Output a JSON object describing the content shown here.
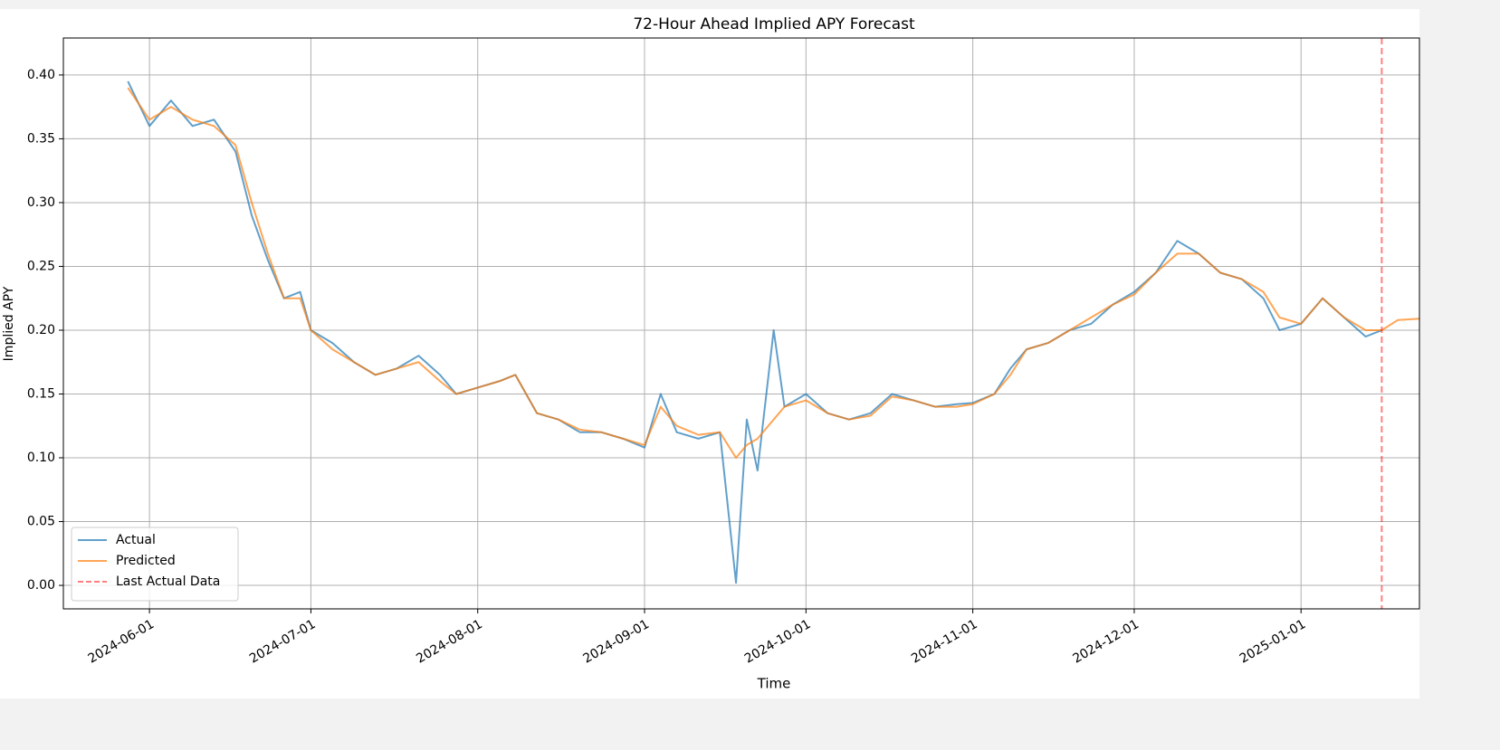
{
  "chart_data": {
    "type": "line",
    "title": "72-Hour Ahead Implied APY Forecast",
    "xlabel": "Time",
    "ylabel": "Implied APY",
    "x": [
      "2024-05-28",
      "2024-06-01",
      "2024-06-05",
      "2024-06-09",
      "2024-06-13",
      "2024-06-17",
      "2024-06-20",
      "2024-06-23",
      "2024-06-26",
      "2024-06-29",
      "2024-07-01",
      "2024-07-05",
      "2024-07-09",
      "2024-07-13",
      "2024-07-17",
      "2024-07-21",
      "2024-07-25",
      "2024-07-28",
      "2024-08-01",
      "2024-08-05",
      "2024-08-08",
      "2024-08-12",
      "2024-08-16",
      "2024-08-20",
      "2024-08-24",
      "2024-08-28",
      "2024-09-01",
      "2024-09-04",
      "2024-09-07",
      "2024-09-11",
      "2024-09-15",
      "2024-09-18",
      "2024-09-20",
      "2024-09-22",
      "2024-09-25",
      "2024-09-27",
      "2024-10-01",
      "2024-10-05",
      "2024-10-09",
      "2024-10-13",
      "2024-10-17",
      "2024-10-21",
      "2024-10-25",
      "2024-10-29",
      "2024-11-01",
      "2024-11-05",
      "2024-11-08",
      "2024-11-11",
      "2024-11-15",
      "2024-11-19",
      "2024-11-23",
      "2024-11-27",
      "2024-12-01",
      "2024-12-05",
      "2024-12-09",
      "2024-12-13",
      "2024-12-17",
      "2024-12-21",
      "2024-12-25",
      "2024-12-28",
      "2025-01-01",
      "2025-01-05",
      "2025-01-09",
      "2025-01-13",
      "2025-01-16",
      "2025-01-19",
      "2025-01-23"
    ],
    "series": [
      {
        "name": "Actual",
        "color": "#1f77b4",
        "values": [
          0.395,
          0.36,
          0.38,
          0.36,
          0.365,
          0.34,
          0.29,
          0.255,
          0.225,
          0.23,
          0.2,
          0.19,
          0.175,
          0.165,
          0.17,
          0.18,
          0.165,
          0.15,
          0.155,
          0.16,
          0.165,
          0.135,
          0.13,
          0.12,
          0.12,
          0.115,
          0.108,
          0.15,
          0.12,
          0.115,
          0.12,
          0.002,
          0.13,
          0.09,
          0.2,
          0.14,
          0.15,
          0.135,
          0.13,
          0.135,
          0.15,
          0.145,
          0.14,
          0.142,
          0.143,
          0.15,
          0.17,
          0.185,
          0.19,
          0.2,
          0.205,
          0.22,
          0.23,
          0.245,
          0.27,
          0.26,
          0.245,
          0.24,
          0.225,
          0.2,
          0.205,
          0.225,
          0.21,
          0.195,
          0.2,
          null,
          null
        ]
      },
      {
        "name": "Predicted",
        "color": "#ff7f0e",
        "values": [
          0.39,
          0.365,
          0.375,
          0.365,
          0.36,
          0.345,
          0.3,
          0.26,
          0.225,
          0.225,
          0.2,
          0.185,
          0.175,
          0.165,
          0.17,
          0.175,
          0.16,
          0.15,
          0.155,
          0.16,
          0.165,
          0.135,
          0.13,
          0.122,
          0.12,
          0.115,
          0.11,
          0.14,
          0.125,
          0.118,
          0.12,
          0.1,
          0.11,
          0.115,
          0.13,
          0.14,
          0.145,
          0.135,
          0.13,
          0.133,
          0.148,
          0.145,
          0.14,
          0.14,
          0.142,
          0.15,
          0.165,
          0.185,
          0.19,
          0.2,
          0.21,
          0.22,
          0.228,
          0.245,
          0.26,
          0.26,
          0.245,
          0.24,
          0.23,
          0.21,
          0.205,
          0.225,
          0.21,
          0.2,
          0.2,
          0.208,
          0.209
        ]
      }
    ],
    "last_actual": "2025-01-16",
    "last_actual_name": "Last Actual Data",
    "last_actual_color": "#ff0000",
    "xlim": [
      "2024-05-16",
      "2025-01-23"
    ],
    "xticks": [
      "2024-06-01",
      "2024-07-01",
      "2024-08-01",
      "2024-09-01",
      "2024-10-01",
      "2024-11-01",
      "2024-12-01",
      "2025-01-01"
    ],
    "ylim": [
      -0.0184,
      0.429
    ],
    "yticks": [
      {
        "value": 0,
        "label": "0.00"
      },
      {
        "value": 0.05,
        "label": "0.05"
      },
      {
        "value": 0.1,
        "label": "0.10"
      },
      {
        "value": 0.15,
        "label": "0.15"
      },
      {
        "value": 0.2,
        "label": "0.20"
      },
      {
        "value": 0.25,
        "label": "0.25"
      },
      {
        "value": 0.3,
        "label": "0.30"
      },
      {
        "value": 0.35,
        "label": "0.35"
      },
      {
        "value": 0.4,
        "label": "0.40"
      }
    ],
    "grid": true,
    "legend": "lower left"
  }
}
